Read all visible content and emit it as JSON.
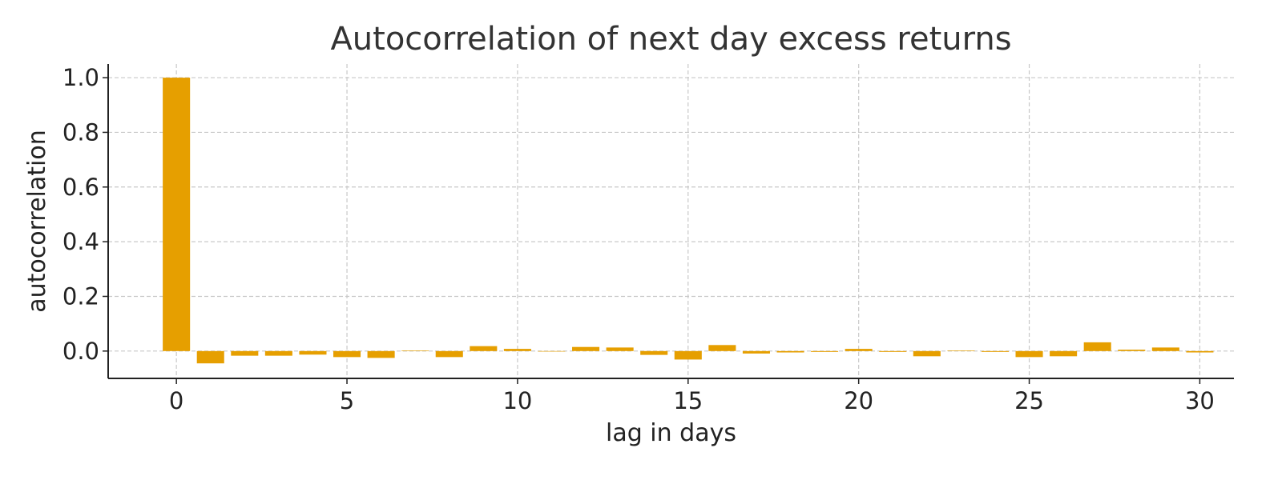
{
  "colors": {
    "bar": "#E69F00",
    "grid": "#c8c8c8",
    "axis": "#222222",
    "title": "#333333"
  },
  "chart_data": {
    "type": "bar",
    "title": "Autocorrelation of next day excess returns",
    "xlabel": "lag in days",
    "ylabel": "autocorrelation",
    "xlim": [
      -2,
      31
    ],
    "ylim": [
      -0.1,
      1.05
    ],
    "grid": true,
    "x_ticks": [
      0,
      5,
      10,
      15,
      20,
      25,
      30
    ],
    "y_ticks": [
      0.0,
      0.2,
      0.4,
      0.6,
      0.8,
      1.0
    ],
    "x_tick_labels": [
      "0",
      "5",
      "10",
      "15",
      "20",
      "25",
      "30"
    ],
    "y_tick_labels": [
      "0.0",
      "0.2",
      "0.4",
      "0.6",
      "0.8",
      "1.0"
    ],
    "x": [
      0,
      1,
      2,
      3,
      4,
      5,
      6,
      7,
      8,
      9,
      10,
      11,
      12,
      13,
      14,
      15,
      16,
      17,
      18,
      19,
      20,
      21,
      22,
      23,
      24,
      25,
      26,
      27,
      28,
      29,
      30
    ],
    "values": [
      1.0,
      -0.045,
      -0.017,
      -0.017,
      -0.013,
      -0.022,
      -0.025,
      0.002,
      -0.022,
      0.018,
      0.008,
      0.0,
      0.015,
      0.013,
      -0.014,
      -0.031,
      0.022,
      -0.009,
      -0.005,
      -0.003,
      0.008,
      -0.003,
      -0.019,
      0.002,
      -0.003,
      -0.022,
      -0.019,
      0.032,
      0.005,
      0.013,
      -0.005
    ]
  }
}
